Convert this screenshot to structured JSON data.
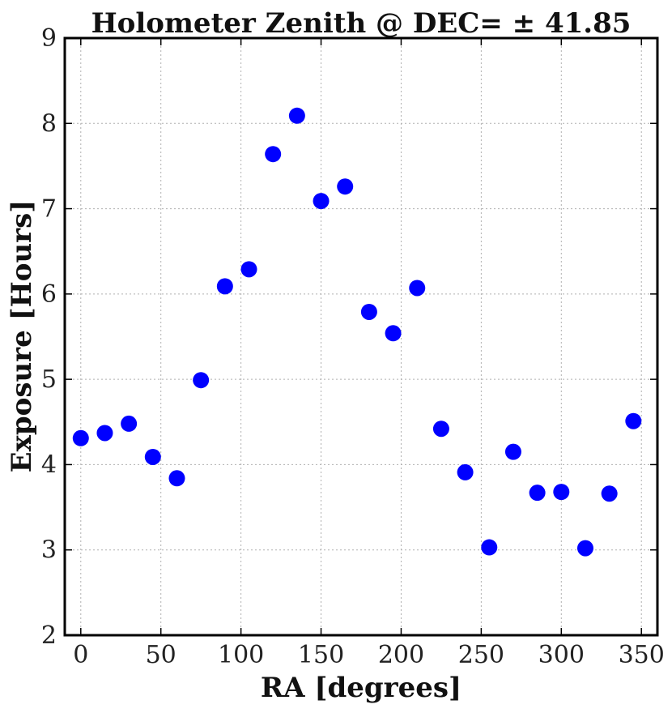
{
  "chart_data": {
    "type": "scatter",
    "title": "Holometer Zenith @ DEC= ± 41.85",
    "xlabel": "RA  [degrees]",
    "ylabel": "Exposure  [Hours]",
    "xlim": [
      -10,
      360
    ],
    "ylim": [
      2,
      9
    ],
    "xticks": [
      0,
      50,
      100,
      150,
      200,
      250,
      300,
      350
    ],
    "yticks": [
      2,
      3,
      4,
      5,
      6,
      7,
      8,
      9
    ],
    "grid": true,
    "marker_color": "#0000ff",
    "series": [
      {
        "x": [
          0,
          15,
          30,
          45,
          60,
          75,
          90,
          105,
          120,
          135,
          150,
          165,
          180,
          195,
          210,
          225,
          240,
          255,
          270,
          285,
          300,
          315,
          330,
          345
        ],
        "y": [
          4.31,
          4.37,
          4.48,
          4.09,
          3.84,
          4.99,
          6.09,
          6.29,
          7.64,
          8.09,
          7.09,
          7.26,
          5.79,
          5.54,
          6.07,
          4.42,
          3.91,
          3.03,
          4.15,
          3.67,
          3.68,
          3.02,
          3.66,
          4.51
        ]
      }
    ]
  }
}
